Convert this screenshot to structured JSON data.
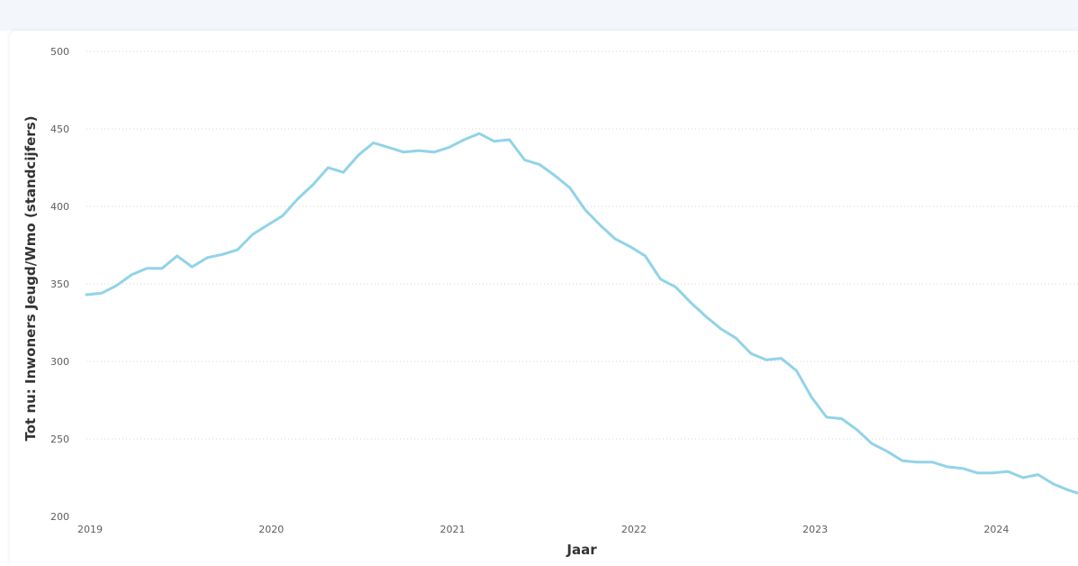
{
  "chart_data": {
    "type": "line",
    "xlabel": "Jaar",
    "ylabel": "Tot nu: Inwoners Jeugd/Wmo (standcijfers)",
    "xlim": [
      2019,
      2024.47
    ],
    "ylim": [
      200,
      500
    ],
    "yticks": [
      200,
      250,
      300,
      350,
      400,
      450,
      500
    ],
    "xticks": [
      2019,
      2020,
      2021,
      2022,
      2023,
      2024
    ],
    "xtick_labels": [
      "2019",
      "2020",
      "2021",
      "2022",
      "2023",
      "2024"
    ],
    "grid": true,
    "series": [
      {
        "color": "#91d3e8",
        "x": [
          2019.0,
          2019.083,
          2019.167,
          2019.25,
          2019.333,
          2019.417,
          2019.5,
          2019.583,
          2019.667,
          2019.75,
          2019.833,
          2019.917,
          2020.0,
          2020.083,
          2020.167,
          2020.25,
          2020.333,
          2020.417,
          2020.5,
          2020.583,
          2020.667,
          2020.75,
          2020.833,
          2020.917,
          2021.0,
          2021.083,
          2021.167,
          2021.25,
          2021.333,
          2021.417,
          2021.5,
          2021.583,
          2021.667,
          2021.75,
          2021.833,
          2021.917,
          2022.0,
          2022.083,
          2022.167,
          2022.25,
          2022.333,
          2022.417,
          2022.5,
          2022.583,
          2022.667,
          2022.75,
          2022.833,
          2022.917,
          2023.0,
          2023.083,
          2023.167,
          2023.25,
          2023.333,
          2023.417,
          2023.5,
          2023.583,
          2023.667,
          2023.75,
          2023.833,
          2023.917,
          2024.0,
          2024.083,
          2024.167,
          2024.25,
          2024.333,
          2024.417,
          2024.47
        ],
        "y": [
          343,
          344,
          349,
          356,
          360,
          360,
          368,
          361,
          367,
          369,
          372,
          382,
          388,
          394,
          405,
          414,
          425,
          422,
          433,
          441,
          438,
          435,
          436,
          435,
          438,
          443,
          447,
          442,
          443,
          430,
          427,
          420,
          412,
          398,
          388,
          379,
          374,
          368,
          353,
          348,
          338,
          329,
          321,
          315,
          305,
          301,
          302,
          294,
          277,
          264,
          263,
          256,
          247,
          242,
          236,
          235,
          235,
          232,
          231,
          228,
          228,
          229,
          225,
          227,
          221,
          217,
          215
        ]
      }
    ]
  }
}
